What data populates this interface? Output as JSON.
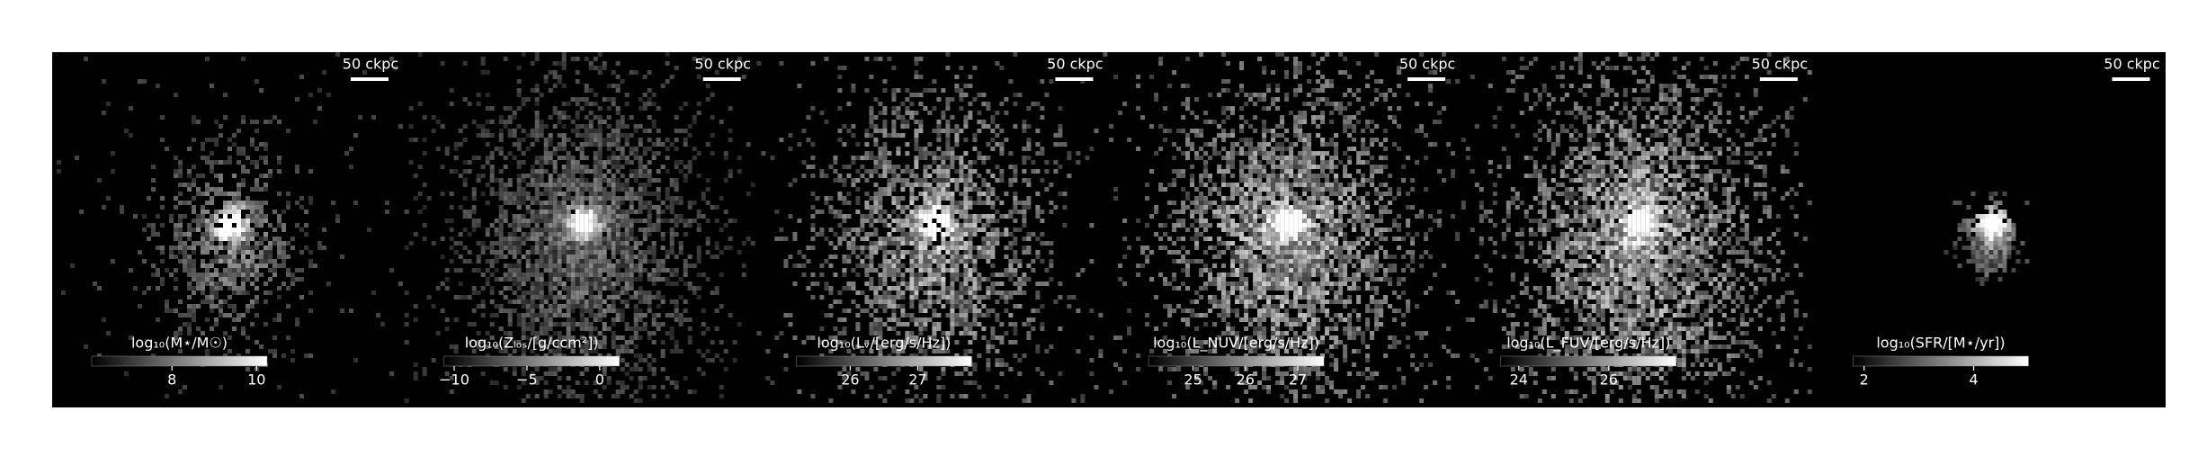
{
  "panels": [
    {
      "scale_bar": "50 ckpc",
      "colorbar": {
        "label": "log₁₀(M⋆/M☉)",
        "lim": [
          6.1,
          10.25
        ],
        "ticks": [
          8,
          10
        ]
      }
    },
    {
      "scale_bar": "50 ckpc",
      "colorbar": {
        "label": "log₁₀(Zₗₒₛ/[g/ccm²])",
        "lim": [
          -10.7,
          1.35
        ],
        "ticks": [
          {
            "value": -10,
            "label": "−10"
          },
          {
            "value": -5,
            "label": "−5"
          },
          0
        ]
      }
    },
    {
      "scale_bar": "50 ckpc",
      "colorbar": {
        "label": "log₁₀(Lᵥ/[erg/s/Hz])",
        "lim": [
          25.2,
          27.8
        ],
        "ticks": [
          26,
          27
        ]
      }
    },
    {
      "scale_bar": "50 ckpc",
      "colorbar": {
        "label": "log₁₀(L_NUV/[erg/s/Hz])",
        "lim": [
          24.15,
          27.5
        ],
        "ticks": [
          25,
          26,
          27
        ]
      }
    },
    {
      "scale_bar": "50 ckpc",
      "colorbar": {
        "label": "log₁₀(L_FUV/[erg/s/Hz])",
        "lim": [
          23.6,
          27.5
        ],
        "ticks": [
          24,
          26
        ]
      }
    },
    {
      "scale_bar": "50 ckpc",
      "colorbar": {
        "label": "log₁₀(SFR/[M⋆/yr])",
        "lim": [
          1.8,
          5.0
        ],
        "ticks": [
          2,
          4
        ]
      }
    }
  ]
}
